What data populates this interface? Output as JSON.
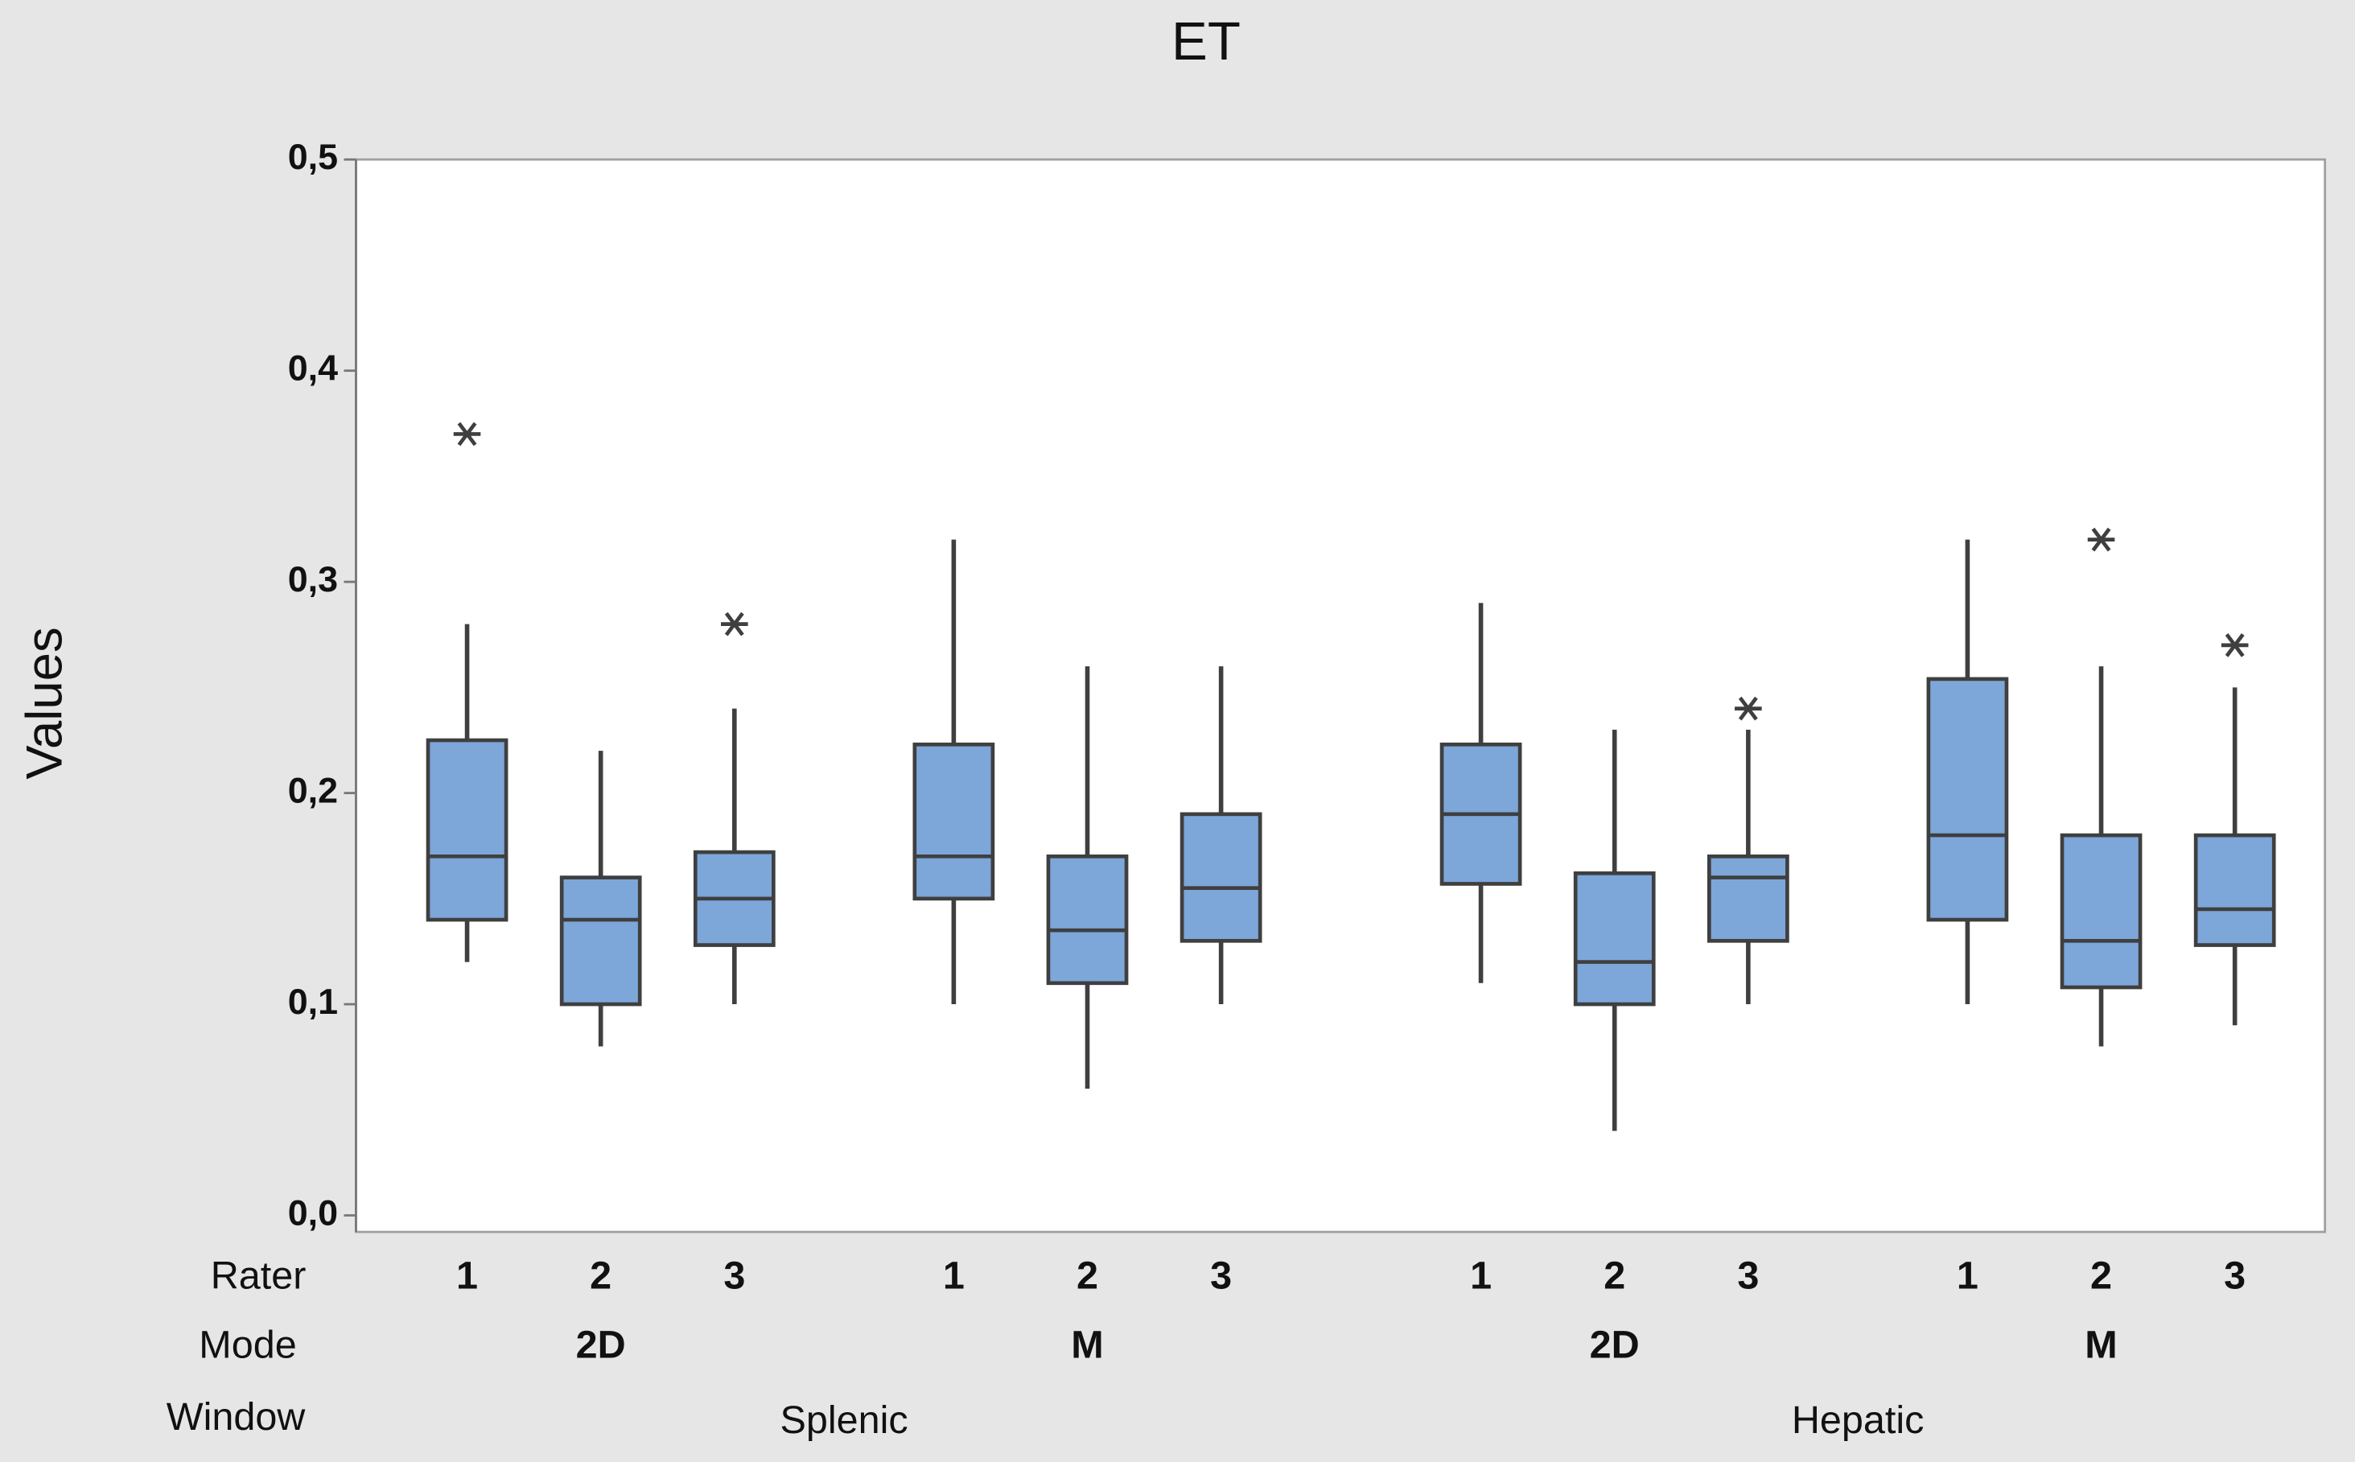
{
  "chart_data": {
    "type": "boxplot",
    "title": "ET",
    "ylabel": "Values",
    "ylim": [
      0,
      0.5
    ],
    "yticks": [
      {
        "value": 0,
        "label": "0,0"
      },
      {
        "value": 0.1,
        "label": "0,1"
      },
      {
        "value": 0.2,
        "label": "0,2"
      },
      {
        "value": 0.3,
        "label": "0,3"
      },
      {
        "value": 0.4,
        "label": "0,4"
      },
      {
        "value": 0.5,
        "label": "0,5"
      }
    ],
    "x_levels": [
      {
        "name": "Rater",
        "labels": [
          "1",
          "2",
          "3",
          "1",
          "2",
          "3",
          "1",
          "2",
          "3",
          "1",
          "2",
          "3"
        ]
      },
      {
        "name": "Mode",
        "labels": [
          "2D",
          "M",
          "2D",
          "M"
        ]
      },
      {
        "name": "Window",
        "labels": [
          "Splenic",
          "Hepatic"
        ]
      }
    ],
    "color": "#7da6d9",
    "boxes": [
      {
        "min": 0.12,
        "q1": 0.14,
        "median": 0.17,
        "q3": 0.225,
        "max": 0.28,
        "outliers": [
          0.37
        ]
      },
      {
        "min": 0.08,
        "q1": 0.1,
        "median": 0.14,
        "q3": 0.16,
        "max": 0.22,
        "outliers": []
      },
      {
        "min": 0.1,
        "q1": 0.128,
        "median": 0.15,
        "q3": 0.172,
        "max": 0.24,
        "outliers": [
          0.28
        ]
      },
      {
        "min": 0.1,
        "q1": 0.15,
        "median": 0.17,
        "q3": 0.223,
        "max": 0.32,
        "outliers": []
      },
      {
        "min": 0.06,
        "q1": 0.11,
        "median": 0.135,
        "q3": 0.17,
        "max": 0.26,
        "outliers": []
      },
      {
        "min": 0.1,
        "q1": 0.13,
        "median": 0.155,
        "q3": 0.19,
        "max": 0.26,
        "outliers": []
      },
      {
        "min": 0.11,
        "q1": 0.157,
        "median": 0.19,
        "q3": 0.223,
        "max": 0.29,
        "outliers": []
      },
      {
        "min": 0.04,
        "q1": 0.1,
        "median": 0.12,
        "q3": 0.162,
        "max": 0.23,
        "outliers": []
      },
      {
        "min": 0.1,
        "q1": 0.13,
        "median": 0.16,
        "q3": 0.17,
        "max": 0.23,
        "outliers": [
          0.24
        ]
      },
      {
        "min": 0.1,
        "q1": 0.14,
        "median": 0.18,
        "q3": 0.254,
        "max": 0.32,
        "outliers": []
      },
      {
        "min": 0.08,
        "q1": 0.108,
        "median": 0.13,
        "q3": 0.18,
        "max": 0.26,
        "outliers": [
          0.32
        ]
      },
      {
        "min": 0.09,
        "q1": 0.128,
        "median": 0.145,
        "q3": 0.18,
        "max": 0.25,
        "outliers": [
          0.27
        ]
      }
    ]
  }
}
